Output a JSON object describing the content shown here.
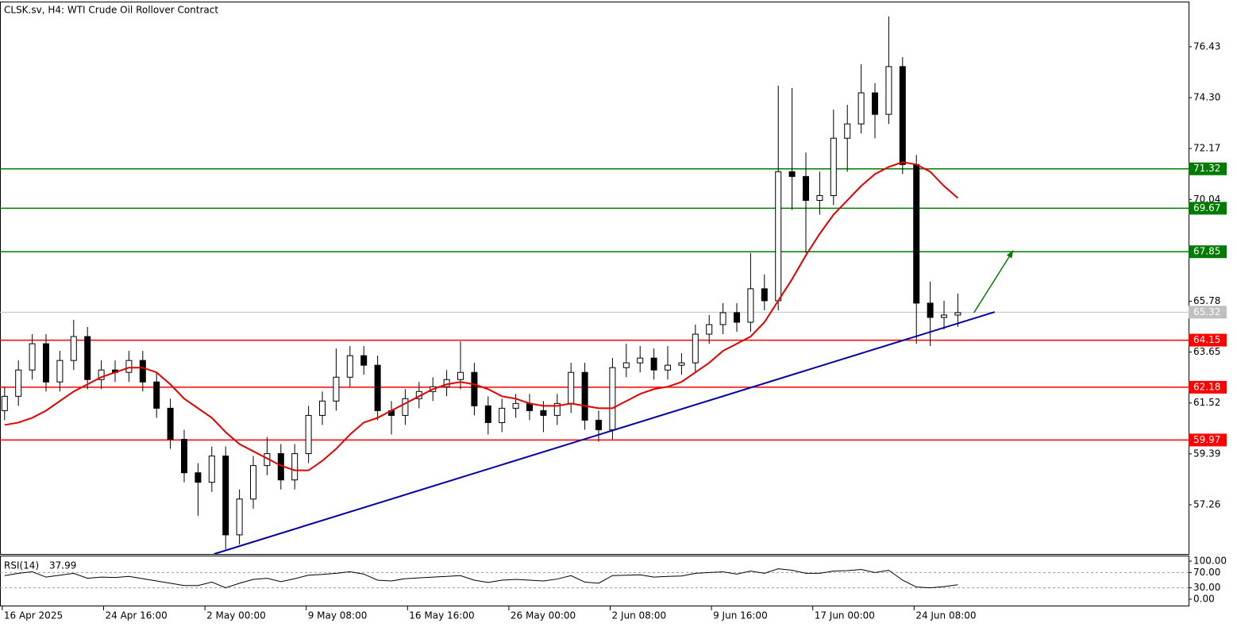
{
  "chart_data": {
    "type": "candlestick",
    "title": "CLSK.sv, H4:  WTI Crude Oil Rollover Contract",
    "xlim": [
      0,
      516.2
    ],
    "xticks": [
      {
        "value": 1,
        "label": "16 Apr 2025"
      },
      {
        "value": 45,
        "label": "24 Apr 16:00"
      },
      {
        "value": 89,
        "label": "2 May 00:00"
      },
      {
        "value": 133,
        "label": "9 May 08:00"
      },
      {
        "value": 177,
        "label": "16 May 16:00"
      },
      {
        "value": 221,
        "label": "26 May 00:00"
      },
      {
        "value": 265,
        "label": "2 Jun 08:00"
      },
      {
        "value": 309,
        "label": "9 Jun 16:00"
      },
      {
        "value": 353,
        "label": "17 Jun 00:00"
      },
      {
        "value": 397,
        "label": "24 Jun 08:00"
      }
    ],
    "ylim": [
      55.2,
      78.32
    ],
    "yticks": [
      76.43,
      {
        "value": 74.3,
        "label": "74.30"
      },
      72.17,
      70.04,
      65.78,
      63.65,
      61.52,
      59.39,
      57.26
    ],
    "candles": {
      "bull_color": "#ffffff",
      "bear_color": "#000000",
      "outline": "#000000",
      "x": [
        2,
        8,
        14,
        20,
        26,
        32,
        38,
        44,
        50,
        56,
        62,
        68,
        74,
        80,
        86,
        92,
        98,
        104,
        110,
        116,
        122,
        128,
        134,
        140,
        146,
        152,
        158,
        164,
        170,
        176,
        182,
        188,
        194,
        200,
        206,
        212,
        218,
        224,
        230,
        236,
        242,
        248,
        254,
        260,
        266,
        272,
        278,
        284,
        290,
        296,
        302,
        308,
        314,
        320,
        326,
        332,
        338,
        344,
        350,
        356,
        362,
        368,
        374,
        380,
        386,
        392,
        398,
        404,
        410,
        416
      ],
      "open": [
        61.2,
        61.8,
        62.9,
        64.0,
        62.4,
        63.3,
        64.3,
        62.5,
        62.9,
        62.8,
        63.3,
        62.4,
        61.3,
        60.0,
        58.6,
        58.2,
        59.3,
        56.0,
        57.5,
        58.9,
        59.4,
        58.3,
        59.4,
        61.0,
        61.6,
        62.6,
        63.5,
        63.1,
        61.2,
        61.0,
        61.7,
        62.0,
        62.2,
        62.5,
        62.8,
        61.4,
        60.7,
        61.3,
        61.5,
        61.2,
        61.0,
        61.5,
        62.8,
        60.8,
        60.4,
        63.0,
        63.2,
        63.4,
        62.9,
        63.1,
        63.2,
        64.4,
        64.8,
        65.3,
        64.9,
        66.3,
        65.8,
        71.2,
        71.0,
        70.0,
        70.2,
        72.6,
        73.2,
        74.5,
        73.6,
        75.6,
        71.5,
        65.7,
        65.1,
        65.2
      ],
      "high": [
        62.2,
        63.3,
        64.4,
        64.4,
        63.7,
        65.0,
        64.7,
        63.3,
        63.3,
        63.7,
        63.7,
        62.8,
        61.7,
        60.4,
        59.0,
        59.7,
        59.7,
        57.9,
        59.3,
        60.1,
        59.8,
        59.8,
        61.4,
        62.0,
        63.8,
        63.9,
        63.9,
        63.5,
        61.6,
        62.1,
        62.4,
        62.6,
        62.9,
        64.1,
        63.2,
        61.8,
        61.7,
        61.9,
        61.9,
        61.6,
        61.9,
        63.2,
        63.2,
        61.2,
        63.4,
        64.0,
        63.9,
        63.8,
        63.9,
        63.6,
        64.8,
        65.2,
        65.7,
        65.7,
        67.8,
        66.9,
        74.8,
        74.7,
        72.0,
        71.2,
        73.8,
        74.0,
        75.7,
        74.9,
        77.7,
        76.0,
        71.9,
        66.6,
        65.8,
        66.1
      ],
      "low": [
        60.8,
        61.4,
        62.5,
        62.0,
        62.0,
        62.9,
        62.1,
        62.1,
        62.4,
        62.4,
        62.0,
        60.9,
        59.6,
        58.2,
        56.8,
        57.8,
        55.4,
        55.6,
        57.1,
        58.5,
        57.9,
        57.9,
        59.0,
        60.6,
        61.2,
        62.2,
        62.7,
        60.8,
        60.2,
        60.6,
        61.3,
        61.6,
        61.8,
        62.1,
        61.0,
        60.2,
        60.3,
        60.9,
        60.8,
        60.3,
        60.6,
        61.1,
        60.4,
        59.9,
        60.0,
        62.6,
        62.8,
        62.5,
        62.5,
        62.7,
        62.8,
        64.0,
        64.4,
        64.5,
        64.5,
        65.4,
        65.4,
        69.6,
        67.8,
        69.4,
        69.8,
        71.2,
        72.8,
        72.6,
        73.2,
        71.1,
        64.0,
        63.9,
        64.6,
        64.7
      ],
      "close": [
        61.8,
        62.9,
        64.0,
        62.4,
        63.3,
        64.3,
        62.5,
        62.9,
        62.8,
        63.3,
        62.4,
        61.3,
        60.0,
        58.6,
        58.2,
        59.3,
        56.0,
        57.5,
        58.9,
        59.4,
        58.3,
        59.4,
        61.0,
        61.6,
        62.6,
        63.5,
        63.1,
        61.2,
        61.0,
        61.7,
        62.0,
        62.2,
        62.5,
        62.8,
        61.4,
        60.7,
        61.3,
        61.5,
        61.2,
        61.0,
        61.5,
        62.8,
        60.8,
        60.4,
        63.0,
        63.2,
        63.4,
        62.9,
        63.1,
        63.2,
        64.4,
        64.8,
        65.3,
        64.9,
        66.3,
        65.8,
        71.2,
        71.0,
        70.0,
        70.2,
        72.6,
        73.2,
        74.5,
        73.6,
        75.6,
        71.5,
        65.7,
        65.1,
        65.2,
        65.3
      ]
    },
    "ma": {
      "color": "#e00000",
      "values": [
        60.6,
        60.7,
        60.9,
        61.2,
        61.6,
        62.0,
        62.3,
        62.6,
        62.8,
        63.0,
        63.0,
        62.8,
        62.3,
        61.7,
        61.3,
        60.9,
        60.3,
        59.8,
        59.5,
        59.2,
        58.9,
        58.7,
        58.7,
        59.1,
        59.6,
        60.2,
        60.7,
        60.9,
        61.2,
        61.5,
        61.8,
        62.1,
        62.3,
        62.4,
        62.3,
        62.1,
        61.8,
        61.7,
        61.5,
        61.4,
        61.4,
        61.5,
        61.4,
        61.3,
        61.3,
        61.6,
        61.9,
        62.1,
        62.2,
        62.4,
        62.8,
        63.2,
        63.7,
        64.0,
        64.3,
        64.9,
        65.8,
        66.7,
        67.7,
        68.6,
        69.4,
        70.0,
        70.6,
        71.1,
        71.4,
        71.6,
        71.5,
        71.2,
        70.6,
        70.1
      ]
    },
    "levels": [
      {
        "value": 71.32,
        "color": "#007a00"
      },
      {
        "value": 69.67,
        "color": "#007a00"
      },
      {
        "value": 67.85,
        "color": "#007a00"
      },
      {
        "value": 65.32,
        "color": "#c0c0c0"
      },
      {
        "value": 64.15,
        "color": "#ff0000"
      },
      {
        "value": 62.18,
        "color": "#ff0000"
      },
      {
        "value": 59.97,
        "color": "#ff0000"
      }
    ],
    "trendline": {
      "color": "#0000a0",
      "x": [
        93,
        432
      ],
      "y": [
        55.2,
        65.33
      ]
    },
    "arrow": {
      "color": "#007a00",
      "x": [
        423,
        440
      ],
      "y": [
        65.3,
        67.9
      ]
    },
    "rsi": {
      "name": "RSI(14)",
      "ylim": [
        0,
        100
      ],
      "yticks": [
        {
          "value": 100,
          "label": "100.00"
        },
        {
          "value": 70,
          "label": "70.00"
        },
        {
          "value": 30,
          "label": "30.00"
        },
        {
          "value": 0,
          "label": "0.00"
        }
      ],
      "values": [
        62,
        68,
        72,
        58,
        63,
        68,
        55,
        58,
        57,
        60,
        54,
        48,
        42,
        36,
        36,
        45,
        30,
        42,
        52,
        55,
        46,
        54,
        63,
        65,
        68,
        72,
        66,
        50,
        48,
        54,
        56,
        58,
        60,
        62,
        50,
        44,
        50,
        52,
        50,
        48,
        53,
        62,
        45,
        42,
        62,
        63,
        64,
        58,
        60,
        61,
        68,
        70,
        72,
        66,
        74,
        68,
        80,
        76,
        68,
        68,
        74,
        75,
        78,
        70,
        76,
        50,
        32,
        30,
        33,
        37.99
      ]
    }
  }
}
